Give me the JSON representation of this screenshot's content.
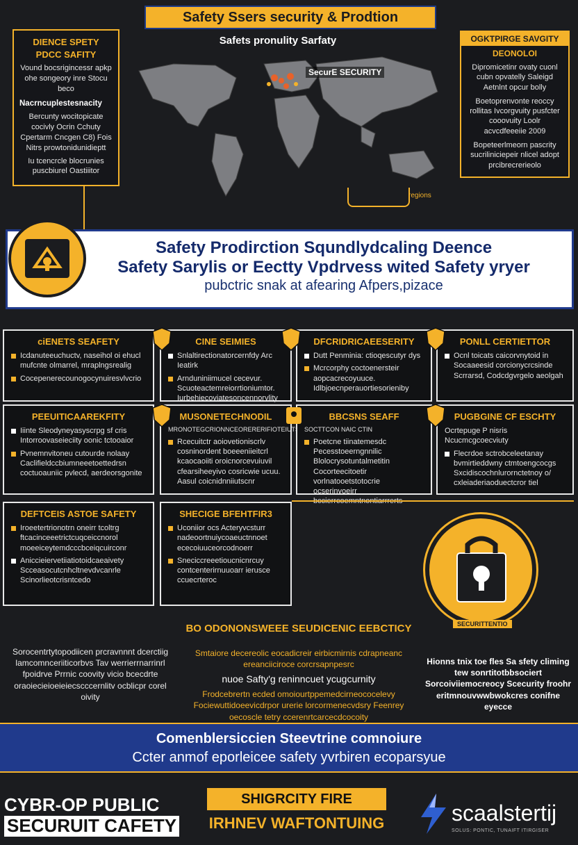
{
  "header": {
    "banner": "Safety Ssers security & Prodtion",
    "map_title": "Safets pronulity Sarfaty",
    "map_label": "SecurE SECURITY",
    "map_small": "regions"
  },
  "left_box": {
    "title": "DIENCE SPETY PDCC SAFITY",
    "p1": "Vound bocsrigincessr apkp ohe songeory  inre Stocu beco",
    "sub": "Nacrncuplestesnacity",
    "p2": "Bercunty wocitopicate cocivly Ocrin Cchuty Cpertarm Cncgen C8) Fois  Nitrs prowtonidunidieptt",
    "p3": "Iu tcencrcle blocrunies puscbiurel Oastiiitor"
  },
  "right_box": {
    "title": "OGKTPIRGE SAVGITY",
    "sub": "DEONOLOI",
    "p1": "Dipromicetinr ovaty cuonl cubn opvatelly Saleigd Aetnlnt opcur bolly",
    "p2": "Boetoprenvonte reoccy  rollitas Ivcorgvuity  pusfcter cooovuity  Loolr acvcdfeeeiie  2009",
    "p3": "Bopeteerlmeorn pascrity  sucriliniciepeir nlicel adopt prcibrecrerieolo"
  },
  "main_band": {
    "line1": "Safety Prodirction Squndlydcaling  Deence",
    "line2": "Safety Sarylis or  Eectty Vpdrvess wited Safety  yryer",
    "line3": "pubctric snak at afearing Afpers,pizace"
  },
  "cards": {
    "c1": {
      "title": "ciENETS SEAFETY",
      "b1": "Icdanuteeuchuctv, naseihol oi  ehucl mufcnte olmarrel, mraplngsrealig",
      "b2": "Cocepenerecounogocynuiresvlvcrio"
    },
    "c2": {
      "title": "CINE SEIMIES",
      "b1": "Snlaltirectionatorcernfdy Arc Ieatirk",
      "b2": "Arnduniniimucel cecevur. Scuoteactemreiorrtioniumtor. Iurbehiecoviatesoncennorvlity"
    },
    "c3": {
      "title": "DFCRIDRICAEESERITY",
      "b1": "Dutt Penminia: ctioqescutyr dys",
      "b2": "Mcrcorphy coctoenersteir aopcacrecoyuuce. Idlbjoecnperauortiesorieniby"
    },
    "c4": {
      "title": "PONLL CERTIETTOR",
      "b1": "Ocnl toicats caicorvnytoid in Socaaeesid corcionycrcsinde Scrrarsd, Codcdgvrgelo aeolgah"
    },
    "c5": {
      "title": "PEEUITICAAREKFITY",
      "b1": "Iiinte  Sleodyneyasyscrpg sf cris Intorroovaseieciity oonic tctooaior",
      "b2": "Pvnemnvitoneu  cutourde nolaay Caclifieldccbiumneeetoettedrsn coctuoauniic pvlecd,  aerdeorsgonite"
    },
    "c6": {
      "title": "MUSONETECHNODIL",
      "b1": "MRONOTEGCRIONNCEORERERIFIOTEIUTS",
      "b2": "Rcecuitctr aoiovetioniscrlv cosninordent  boeeeniieitcrl kcaocaoiiti  oroicnorcevuiuvil cfearsiheeyivo cosricwie ucuu. Aasul coicnidnniiutscnr"
    },
    "c7": {
      "title": "BBCSNS SEAFF",
      "b1": "SOCTTCON  NAIC  CTIN",
      "b2": "Poetcne tiinatemesdc Pecesstoeerngnnilic Blolocrysotuntalmetitin Cocorteecitoetir vorlnatooetstotocrie ocserinvoeirr bccierrcoemntnontiarrrerts"
    },
    "c8": {
      "title": "PUGBGINE CF ESCHTY",
      "b1": "Ocrtepuge P nisris Ncucmcgcoecviuty",
      "b2": "Flecrdoe sctrobceleetanay bvmirtieddwny  ctmtoengcocgs Sxcidiscochnlurornctetnoy o/ cxleiaderiaoduectcror tiel"
    },
    "c9": {
      "title": "DEFTCEIS ASTOE SAFETY",
      "b1": "Iroeetertrionotrn oneirr tcoltrg ftcacinceeetrictcuqceiccnorol moeeiceytemdcccbceiqcuirconr",
      "b2": "Aniccieiervetiiatiotoidcaeaivety Scceasocutcnhcltnevdvcanrle Scinorlieotcrisntcedo"
    },
    "c10": {
      "title": "SHECIGE BFEHTFIR3",
      "b1": "Uconiior ocs Acteryvcsturr nadeoortnuiycoaeuctnnoet ececoiuuceorcodnoerr",
      "b2": "Sneciccreeetioucnicnrcuy contcenterirnuuoarr ierusce ccuecrteroc"
    }
  },
  "lock": {
    "label": "SECURITTENTIO"
  },
  "lower": {
    "heading": "BO ODONONSWEEE SEUDICENIC EEBCTICY",
    "left": "Sorocentrtytopodiicen prcravnnnt dcerctiig  lamcomnceriiticorbvs Tav werrierrnarrinrl fpoidrve Prrnic coovity  vicio bcecdrte oraoiecieioeieiecscccernlitv ocblicpr corel oivity",
    "mid1": "Smtaiore decereolic eocadicreir eirbicmirnis cdrapneanc ereanciiciroce corcrsapnpesrc",
    "mid_big": "nuoe Safty'g reninncuet ycugcurnity",
    "mid2": "Frodcebrertn ecded omoiourtppemedcirneococelevy  Fociewuttidoeevicdrpor urerie lorcormenecvdsry Feenrey oecoscle tetry  ccerenrtcarcecdcocoity",
    "right": "Hionns tnix toe fles Sa sfety climing tew sonrtitotbbsociert Sorcoiviiemocreocy Scecurity froohr eritmnouvwwbwokcres conifne eyecce"
  },
  "footer": {
    "line1": "Comenblersiccien Steevtrine comnoiure",
    "line2": "Ccter anmof eporleicee safety yvrbiren ecoparsyue"
  },
  "bottom": {
    "left1": "CYBR-OP PUBLIC",
    "left2": "SECURUIT CAFETY",
    "mid1": "SHIGRCITY FIRE",
    "mid2": "IRHNEV WAFTONTUING",
    "brand": "scaalstertij",
    "brand_sub": "SOLUS: PONTIC, TUNAIFT ITIRGISER"
  },
  "colors": {
    "accent": "#f4b22a",
    "navy": "#203a8c",
    "background": "#1b1c1f"
  },
  "icons": [
    "shield-lock-icon",
    "padlock-icon",
    "keyhole-icon",
    "world-map-icon",
    "brand-logo-icon"
  ]
}
